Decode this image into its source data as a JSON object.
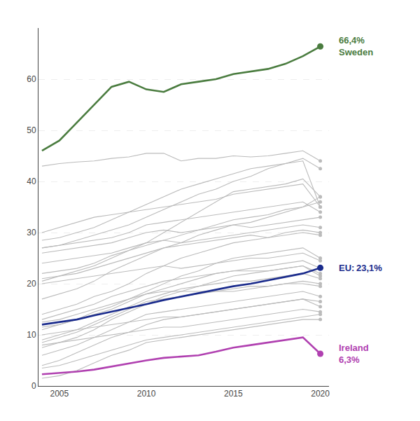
{
  "chart_data": {
    "type": "line",
    "x": [
      2004,
      2005,
      2006,
      2007,
      2008,
      2009,
      2010,
      2011,
      2012,
      2013,
      2014,
      2015,
      2016,
      2017,
      2018,
      2019,
      2020
    ],
    "xlim": [
      2003.8,
      2020.5
    ],
    "xticks": [
      2005,
      2010,
      2015,
      2020
    ],
    "ylim": [
      0,
      70
    ],
    "yticks": [
      0,
      10,
      20,
      30,
      40,
      50,
      60
    ],
    "grid": true,
    "marker": "last",
    "series": [
      {
        "color": "#bbbbbb",
        "values": [
          43.0,
          43.5,
          43.8,
          44.0,
          44.5,
          44.8,
          45.5,
          45.5,
          44.0,
          44.5,
          44.5,
          45.0,
          44.8,
          45.0,
          45.5,
          46.0,
          44.0
        ]
      },
      {
        "color": "#bbbbbb",
        "values": [
          27.0,
          27.5,
          28.5,
          29.5,
          30.5,
          31.5,
          33.0,
          34.5,
          36.0,
          37.5,
          38.5,
          40.0,
          41.0,
          42.5,
          43.5,
          44.5,
          42.5
        ]
      },
      {
        "color": "#bbbbbb",
        "values": [
          20.5,
          21.5,
          22.5,
          23.5,
          25.0,
          26.5,
          28.0,
          30.0,
          32.0,
          34.0,
          36.0,
          38.0,
          38.5,
          39.0,
          39.5,
          40.5,
          37.0
        ]
      },
      {
        "color": "#bbbbbb",
        "values": [
          17.0,
          18.0,
          19.0,
          20.5,
          22.5,
          24.0,
          25.5,
          27.0,
          28.0,
          29.5,
          30.5,
          31.5,
          32.0,
          33.0,
          34.0,
          35.0,
          37.0
        ]
      },
      {
        "color": "#bbbbbb",
        "values": [
          22.0,
          22.5,
          23.0,
          24.0,
          25.5,
          26.5,
          27.5,
          28.5,
          29.5,
          30.5,
          31.5,
          32.5,
          33.0,
          33.5,
          34.5,
          35.0,
          36.0
        ]
      },
      {
        "color": "#bbbbbb",
        "values": [
          28.5,
          29.0,
          30.0,
          31.0,
          32.5,
          34.0,
          35.5,
          37.0,
          38.5,
          39.5,
          40.5,
          41.5,
          42.5,
          43.0,
          43.5,
          44.0,
          35.0
        ]
      },
      {
        "color": "#bbbbbb",
        "values": [
          30.0,
          31.0,
          32.0,
          33.0,
          33.5,
          34.0,
          34.5,
          35.0,
          35.5,
          36.0,
          36.5,
          37.5,
          38.0,
          38.5,
          39.0,
          39.5,
          35.0
        ]
      },
      {
        "color": "#bbbbbb",
        "values": [
          27.0,
          27.5,
          28.0,
          28.5,
          29.0,
          30.0,
          31.5,
          32.0,
          32.5,
          33.0,
          33.5,
          34.0,
          34.5,
          35.0,
          35.5,
          36.0,
          34.0
        ]
      },
      {
        "color": "#bbbbbb",
        "values": [
          26.0,
          26.5,
          27.0,
          27.5,
          28.0,
          29.0,
          30.0,
          30.5,
          30.0,
          30.5,
          31.0,
          31.5,
          31.0,
          31.5,
          32.0,
          32.5,
          33.0
        ]
      },
      {
        "color": "#bbbbbb",
        "values": [
          24.0,
          24.5,
          25.0,
          25.5,
          26.0,
          27.0,
          28.0,
          28.5,
          28.0,
          28.5,
          29.0,
          29.5,
          30.0,
          30.5,
          31.0,
          31.5,
          31.0
        ]
      },
      {
        "color": "#bbbbbb",
        "values": [
          14.0,
          15.0,
          16.0,
          17.5,
          18.5,
          20.0,
          22.0,
          23.5,
          25.0,
          26.0,
          27.0,
          28.0,
          28.5,
          29.0,
          30.0,
          30.5,
          30.0
        ]
      },
      {
        "color": "#bbbbbb",
        "values": [
          21.0,
          21.5,
          22.0,
          23.0,
          24.0,
          25.0,
          26.0,
          27.0,
          27.5,
          28.0,
          28.5,
          29.0,
          29.5,
          29.0,
          29.5,
          30.0,
          29.5
        ]
      },
      {
        "color": "#bbbbbb",
        "values": [
          11.0,
          12.0,
          13.0,
          14.5,
          15.5,
          17.0,
          18.5,
          20.0,
          21.5,
          22.5,
          24.0,
          25.0,
          25.5,
          26.0,
          26.5,
          27.0,
          25.0
        ]
      },
      {
        "color": "#bbbbbb",
        "values": [
          20.0,
          20.5,
          21.0,
          21.5,
          22.0,
          22.5,
          23.0,
          23.5,
          23.0,
          23.5,
          24.0,
          24.5,
          25.0,
          25.0,
          25.5,
          26.0,
          24.5
        ]
      },
      {
        "color": "#bbbbbb",
        "values": [
          11.5,
          12.0,
          13.0,
          14.0,
          15.0,
          16.5,
          18.0,
          19.0,
          20.0,
          21.0,
          22.0,
          22.5,
          23.0,
          23.5,
          24.0,
          24.5,
          23.0
        ]
      },
      {
        "color": "#bbbbbb",
        "values": [
          13.0,
          14.0,
          15.0,
          16.0,
          17.5,
          18.5,
          19.5,
          20.5,
          21.0,
          21.5,
          22.0,
          22.5,
          22.5,
          22.5,
          23.0,
          23.5,
          22.0
        ]
      },
      {
        "color": "#bbbbbb",
        "values": [
          7.5,
          8.5,
          9.5,
          11.0,
          13.0,
          14.5,
          16.0,
          17.5,
          18.5,
          19.5,
          20.5,
          21.5,
          22.0,
          22.5,
          23.0,
          23.5,
          21.5
        ]
      },
      {
        "color": "#bbbbbb",
        "values": [
          9.0,
          10.0,
          11.0,
          12.5,
          14.0,
          15.5,
          17.0,
          18.0,
          19.0,
          19.5,
          20.0,
          20.5,
          20.5,
          21.0,
          21.5,
          22.0,
          21.0
        ]
      },
      {
        "color": "#bbbbbb",
        "values": [
          12.5,
          13.0,
          14.0,
          15.0,
          16.0,
          17.0,
          18.0,
          18.5,
          18.5,
          18.5,
          18.5,
          19.0,
          19.5,
          19.5,
          20.0,
          20.5,
          20.0
        ]
      },
      {
        "color": "#bbbbbb",
        "values": [
          8.5,
          9.5,
          10.5,
          12.0,
          13.5,
          15.0,
          16.5,
          17.0,
          17.5,
          18.0,
          18.5,
          18.5,
          19.0,
          19.5,
          20.0,
          20.0,
          19.5
        ]
      },
      {
        "color": "#bbbbbb",
        "values": [
          6.0,
          7.0,
          8.0,
          9.5,
          11.0,
          12.5,
          14.0,
          14.5,
          15.0,
          15.5,
          16.0,
          16.5,
          17.0,
          17.5,
          18.0,
          18.5,
          17.5
        ]
      },
      {
        "color": "#bbbbbb",
        "values": [
          4.0,
          5.0,
          6.5,
          8.0,
          9.5,
          10.5,
          12.0,
          13.0,
          13.5,
          14.0,
          14.5,
          15.0,
          15.5,
          16.0,
          16.5,
          17.0,
          16.5
        ]
      },
      {
        "color": "#bbbbbb",
        "values": [
          10.0,
          10.5,
          11.0,
          11.5,
          12.0,
          12.5,
          13.0,
          13.5,
          13.5,
          14.0,
          14.5,
          15.0,
          15.5,
          16.0,
          16.5,
          17.0,
          15.5
        ]
      },
      {
        "color": "#bbbbbb",
        "values": [
          8.0,
          8.5,
          9.0,
          9.5,
          10.0,
          10.5,
          11.0,
          11.5,
          11.5,
          12.0,
          12.5,
          13.0,
          13.5,
          14.0,
          14.5,
          15.0,
          14.5
        ]
      },
      {
        "color": "#bbbbbb",
        "values": [
          3.5,
          4.0,
          5.0,
          6.0,
          7.0,
          8.0,
          9.0,
          9.5,
          10.0,
          10.5,
          11.0,
          11.5,
          12.0,
          12.5,
          13.0,
          13.5,
          14.0
        ]
      },
      {
        "color": "#bbbbbb",
        "values": [
          1.5,
          2.0,
          3.0,
          4.5,
          6.0,
          7.0,
          8.5,
          9.0,
          9.5,
          10.0,
          10.5,
          11.0,
          11.5,
          12.0,
          12.5,
          13.0,
          13.0
        ]
      },
      {
        "color": "#1a2b8c",
        "labels": [
          "EU: 23,1%"
        ],
        "values": [
          12.0,
          12.5,
          13.0,
          13.8,
          14.5,
          15.3,
          16.0,
          16.8,
          17.5,
          18.2,
          18.8,
          19.5,
          20.0,
          20.7,
          21.3,
          22.0,
          23.1
        ]
      },
      {
        "color": "#b040b0",
        "labels": [
          "Ireland",
          "6,3%"
        ],
        "values": [
          2.3,
          2.5,
          2.8,
          3.2,
          3.8,
          4.5,
          5.0,
          5.5,
          5.8,
          6.0,
          6.7,
          7.5,
          8.0,
          8.5,
          9.0,
          9.5,
          6.3
        ]
      },
      {
        "color": "#4a7c3f",
        "labels": [
          "66,4%",
          "Sweden"
        ],
        "values": [
          46.0,
          48.0,
          51.5,
          55.0,
          58.5,
          59.5,
          58.0,
          57.5,
          59.0,
          59.5,
          60.0,
          61.0,
          61.5,
          62.0,
          63.0,
          64.5,
          66.4
        ]
      }
    ]
  }
}
